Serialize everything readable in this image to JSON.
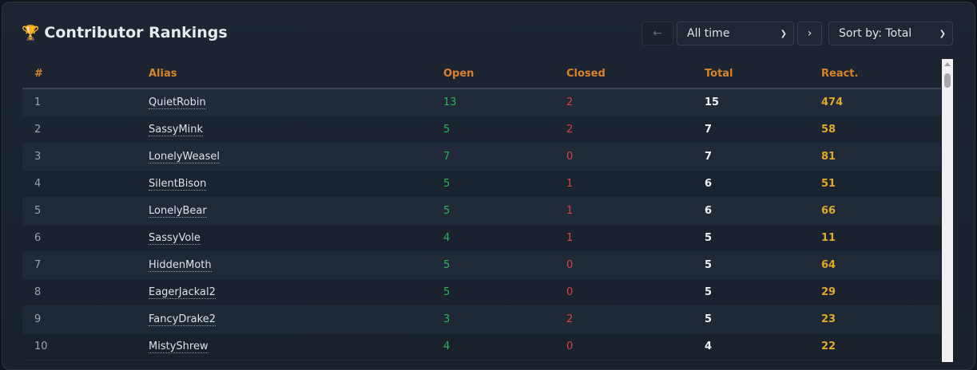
{
  "title": "Contributor Rankings",
  "icons": {
    "title": "trophy-icon"
  },
  "controls": {
    "prev": "←",
    "range": "All time",
    "next": "›",
    "sort": "Sort by: Total"
  },
  "columns": [
    "#",
    "Alias",
    "Open",
    "Closed",
    "Total",
    "React."
  ],
  "rows": [
    {
      "rank": "1",
      "alias": "QuietRobin",
      "open": "13",
      "closed": "2",
      "total": "15",
      "react": "474"
    },
    {
      "rank": "2",
      "alias": "SassyMink",
      "open": "5",
      "closed": "2",
      "total": "7",
      "react": "58"
    },
    {
      "rank": "3",
      "alias": "LonelyWeasel",
      "open": "7",
      "closed": "0",
      "total": "7",
      "react": "81"
    },
    {
      "rank": "4",
      "alias": "SilentBison",
      "open": "5",
      "closed": "1",
      "total": "6",
      "react": "51"
    },
    {
      "rank": "5",
      "alias": "LonelyBear",
      "open": "5",
      "closed": "1",
      "total": "6",
      "react": "66"
    },
    {
      "rank": "6",
      "alias": "SassyVole",
      "open": "4",
      "closed": "1",
      "total": "5",
      "react": "11"
    },
    {
      "rank": "7",
      "alias": "HiddenMoth",
      "open": "5",
      "closed": "0",
      "total": "5",
      "react": "64"
    },
    {
      "rank": "8",
      "alias": "EagerJackal2",
      "open": "5",
      "closed": "0",
      "total": "5",
      "react": "29"
    },
    {
      "rank": "9",
      "alias": "FancyDrake2",
      "open": "3",
      "closed": "2",
      "total": "5",
      "react": "23"
    },
    {
      "rank": "10",
      "alias": "MistyShrew",
      "open": "4",
      "closed": "0",
      "total": "4",
      "react": "22"
    }
  ]
}
